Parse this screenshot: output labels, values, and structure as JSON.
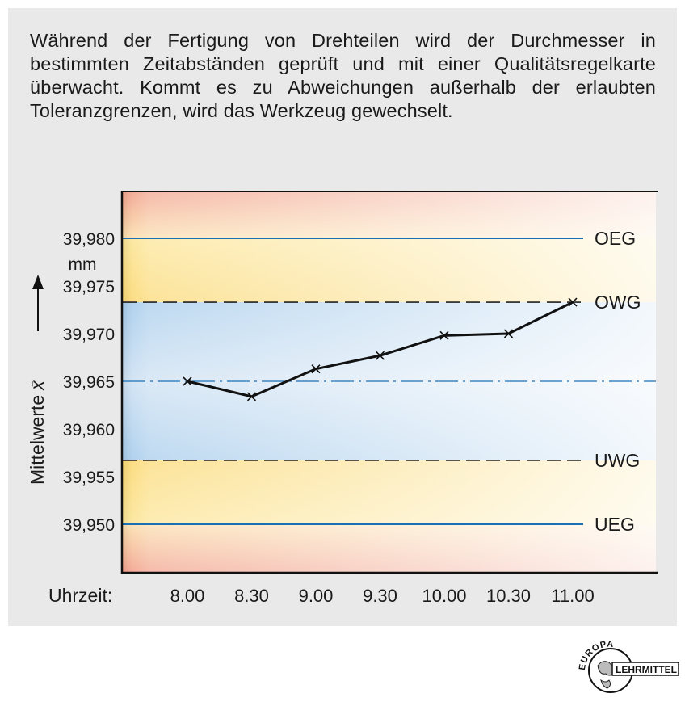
{
  "description_text": "Während der Fertigung von Drehteilen wird der Durchmesser in bestimmten Zeitabständen geprüft und mit einer Qualitätsregelkarte überwacht. Kommt es zu Abweichungen außerhalb der erlaubten Toleranzgrenzen, wird das Werkzeug gewechselt.",
  "colors": {
    "panel": "#e9e9e9",
    "limit_line": "#1a6fb5",
    "red_zone": "#f2aa95",
    "yellow_zone": "#fbe28a",
    "blue_zone": "#b9d6ef",
    "data_line": "#111111"
  },
  "chart_data": {
    "type": "line",
    "xlabel": "Uhrzeit:",
    "ylabel": "Mittelwerte x̄",
    "ylabel_symbol": "x̄",
    "ylabel_text": "Mittelwerte",
    "yunit": "mm",
    "categories": [
      "8.00",
      "8.30",
      "9.00",
      "9.30",
      "10.00",
      "10.30",
      "11.00"
    ],
    "values": [
      39.965,
      39.9634,
      39.9663,
      39.9677,
      39.9698,
      39.97,
      39.9733
    ],
    "y_ticks": [
      "39,950",
      "39,955",
      "39,960",
      "39,965",
      "39,970",
      "39,975",
      "39,980"
    ],
    "y_tick_values": [
      39.95,
      39.955,
      39.96,
      39.965,
      39.97,
      39.975,
      39.98
    ],
    "ylim": [
      39.945,
      39.985
    ],
    "limits": [
      {
        "label": "OEG",
        "value": 39.98,
        "style": "solid"
      },
      {
        "label": "OWG",
        "value": 39.9733,
        "style": "dashed"
      },
      {
        "label": "",
        "value": 39.965,
        "style": "dash-dot"
      },
      {
        "label": "UWG",
        "value": 39.9567,
        "style": "dashed"
      },
      {
        "label": "UEG",
        "value": 39.95,
        "style": "solid"
      }
    ],
    "grid": false
  },
  "logo": {
    "top_text": "EUROPA",
    "side_text": "LEHRMITTEL"
  }
}
